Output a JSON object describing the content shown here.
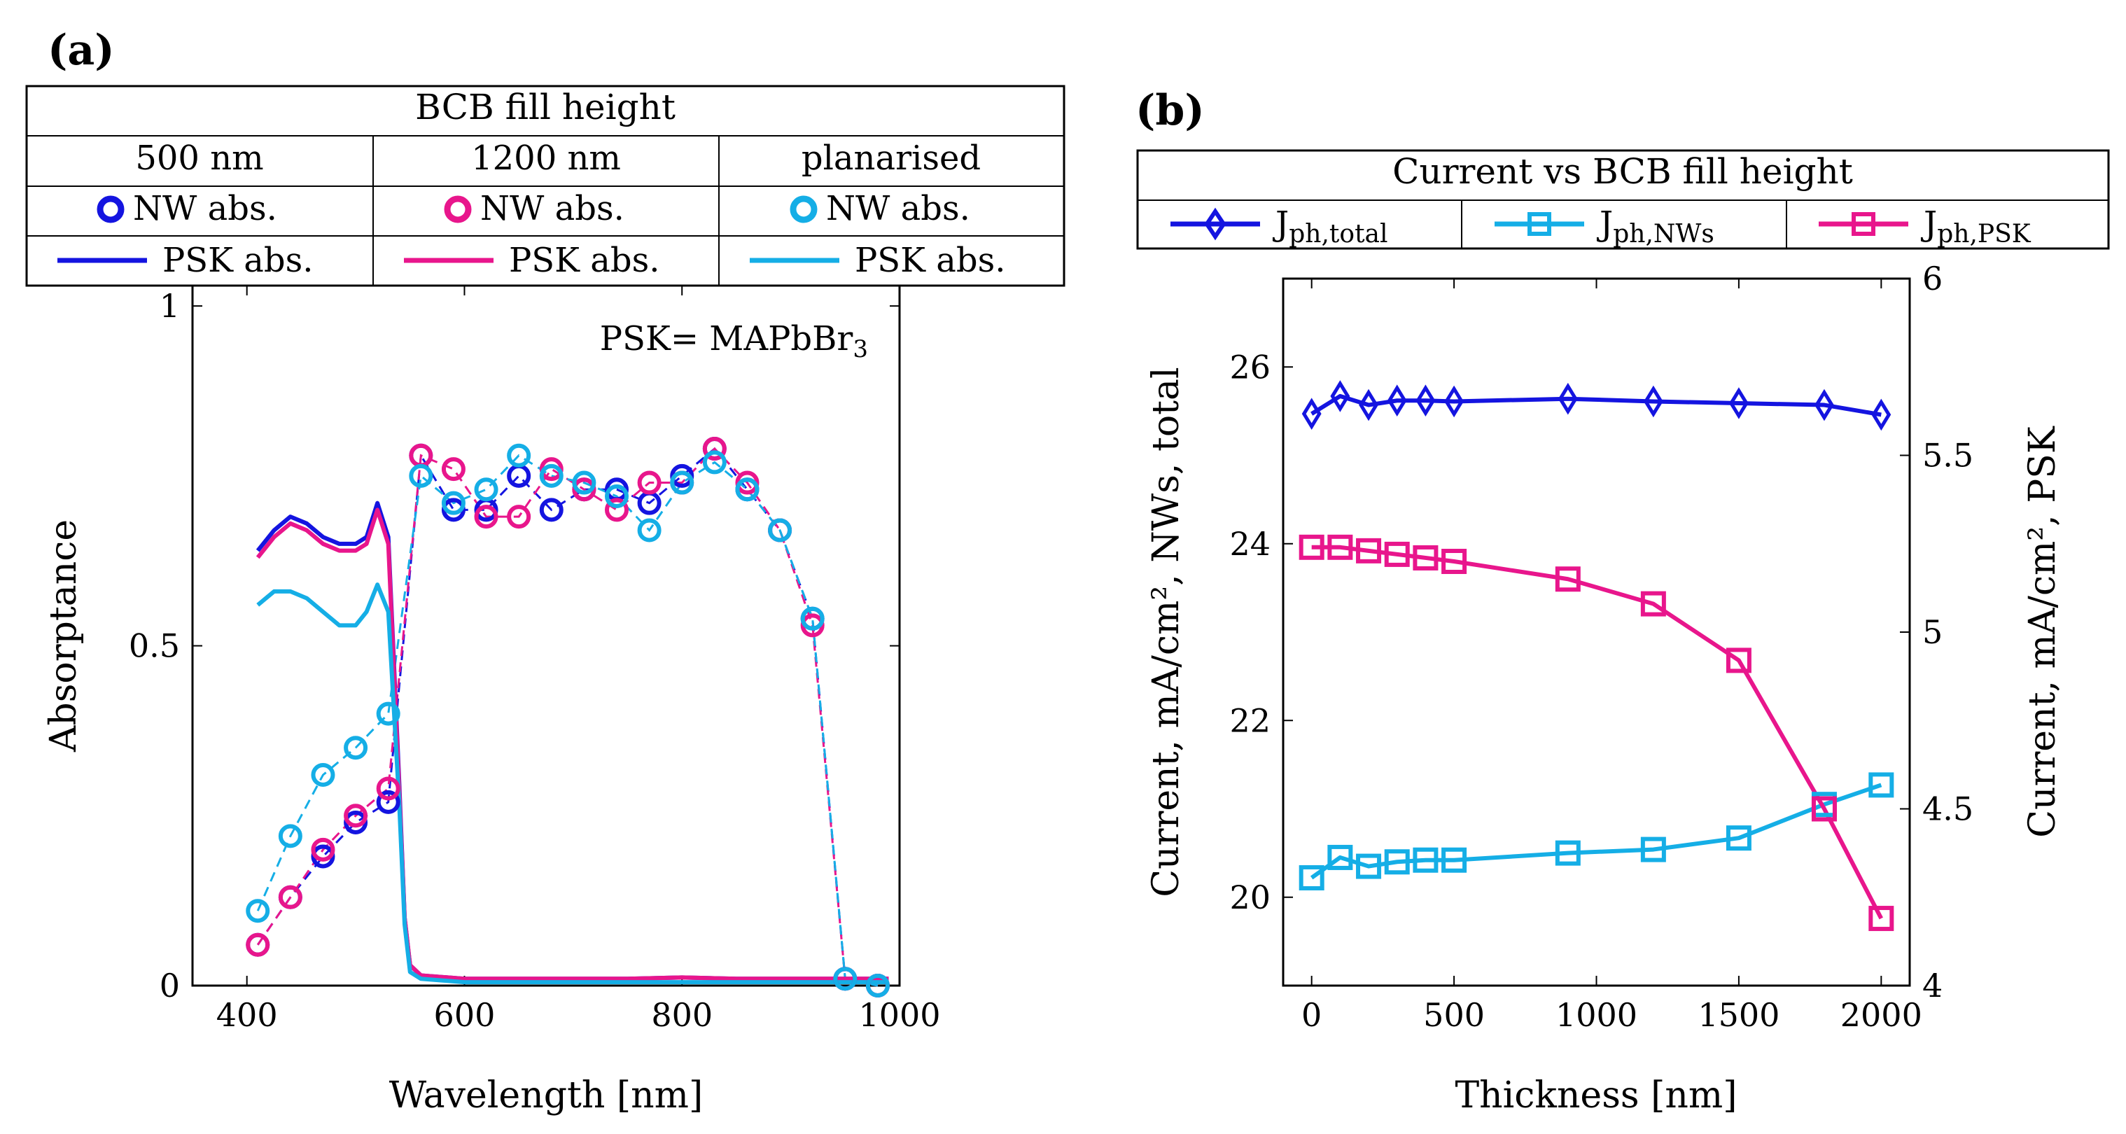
{
  "panels": {
    "a": {
      "label": "(a)"
    },
    "b": {
      "label": "(b)"
    }
  },
  "colors": {
    "blue": "#1414e0",
    "magenta": "#e8168c",
    "cyan": "#15aee6"
  },
  "chart_data": [
    {
      "type": "line",
      "panel": "a",
      "title": "",
      "annotation": "PSK= MAPbBr",
      "annotation_sub": "3",
      "xlabel": "Wavelength [nm]",
      "ylabel": "Absorptance",
      "xlim": [
        350,
        1000
      ],
      "ylim": [
        0,
        1.03
      ],
      "xticks": [
        400,
        600,
        800,
        1000
      ],
      "xtick_labels": [
        "400",
        "600",
        "800",
        "1000"
      ],
      "yticks": [
        0,
        0.5,
        1
      ],
      "ytick_labels": [
        "0",
        "0.5",
        "1"
      ],
      "legend": {
        "title": "BCB fill height",
        "columns": [
          "500 nm",
          "1200 nm",
          "planarised"
        ],
        "marker_label": "NW abs.",
        "line_label": "PSK abs."
      },
      "series": [
        {
          "name": "NW abs. 500 nm",
          "group": "500 nm",
          "kind": "markers",
          "color": "#1414e0",
          "x": [
            410,
            440,
            470,
            500,
            530,
            560,
            590,
            620,
            650,
            680,
            710,
            740,
            770,
            800,
            830,
            860,
            890,
            920,
            950,
            980
          ],
          "y": [
            0.06,
            0.13,
            0.19,
            0.24,
            0.27,
            0.78,
            0.7,
            0.7,
            0.75,
            0.7,
            0.73,
            0.73,
            0.71,
            0.75,
            0.79,
            0.73,
            0.67,
            0.54,
            0.01,
            0.0
          ]
        },
        {
          "name": "NW abs. 1200 nm",
          "group": "1200 nm",
          "kind": "markers",
          "color": "#e8168c",
          "x": [
            410,
            440,
            470,
            500,
            530,
            560,
            590,
            620,
            650,
            680,
            710,
            740,
            770,
            800,
            830,
            860,
            890,
            920,
            950,
            980
          ],
          "y": [
            0.06,
            0.13,
            0.2,
            0.25,
            0.29,
            0.78,
            0.76,
            0.69,
            0.69,
            0.76,
            0.73,
            0.7,
            0.74,
            0.74,
            0.79,
            0.74,
            0.67,
            0.53,
            0.01,
            0.0
          ]
        },
        {
          "name": "NW abs. planarised",
          "group": "planarised",
          "kind": "markers",
          "color": "#15aee6",
          "x": [
            410,
            440,
            470,
            500,
            530,
            560,
            590,
            620,
            650,
            680,
            710,
            740,
            770,
            800,
            830,
            860,
            890,
            920,
            950,
            980
          ],
          "y": [
            0.11,
            0.22,
            0.31,
            0.35,
            0.4,
            0.75,
            0.71,
            0.73,
            0.78,
            0.75,
            0.74,
            0.72,
            0.67,
            0.74,
            0.77,
            0.73,
            0.67,
            0.54,
            0.01,
            0.0
          ]
        },
        {
          "name": "PSK abs. 500 nm",
          "group": "500 nm",
          "kind": "line",
          "color": "#1414e0",
          "x": [
            410,
            425,
            440,
            455,
            470,
            485,
            500,
            510,
            520,
            530,
            540,
            545,
            550,
            560,
            600,
            650,
            700,
            750,
            800,
            850,
            900,
            950,
            990
          ],
          "y": [
            0.64,
            0.67,
            0.69,
            0.68,
            0.66,
            0.65,
            0.65,
            0.66,
            0.71,
            0.66,
            0.3,
            0.1,
            0.03,
            0.015,
            0.01,
            0.01,
            0.01,
            0.01,
            0.012,
            0.01,
            0.01,
            0.01,
            0.01
          ]
        },
        {
          "name": "PSK abs. 1200 nm",
          "group": "1200 nm",
          "kind": "line",
          "color": "#e8168c",
          "x": [
            410,
            425,
            440,
            455,
            470,
            485,
            500,
            510,
            520,
            530,
            540,
            545,
            550,
            560,
            600,
            650,
            700,
            750,
            800,
            850,
            900,
            950,
            990
          ],
          "y": [
            0.63,
            0.66,
            0.68,
            0.67,
            0.65,
            0.64,
            0.64,
            0.65,
            0.7,
            0.65,
            0.29,
            0.1,
            0.03,
            0.015,
            0.01,
            0.01,
            0.01,
            0.01,
            0.012,
            0.01,
            0.01,
            0.01,
            0.01
          ]
        },
        {
          "name": "PSK abs. planarised",
          "group": "planarised",
          "kind": "line",
          "color": "#15aee6",
          "x": [
            410,
            425,
            440,
            455,
            470,
            485,
            500,
            510,
            520,
            530,
            540,
            545,
            550,
            560,
            600,
            650,
            700,
            750,
            800,
            850,
            900,
            950,
            990
          ],
          "y": [
            0.56,
            0.58,
            0.58,
            0.57,
            0.55,
            0.53,
            0.53,
            0.55,
            0.59,
            0.55,
            0.27,
            0.09,
            0.02,
            0.01,
            0.005,
            0.005,
            0.005,
            0.005,
            0.005,
            0.005,
            0.005,
            0.005,
            0.005
          ]
        }
      ]
    },
    {
      "type": "line",
      "panel": "b",
      "title": "",
      "xlabel": "Thickness [nm]",
      "ylabel_left": "Current, mA/cm², NWs, total",
      "ylabel_right": "Current, mA/cm², PSK",
      "xlim": [
        -100,
        2100
      ],
      "ylim_left": [
        19.0,
        27.0
      ],
      "ylim_right": [
        4.0,
        6.0
      ],
      "xticks": [
        0,
        500,
        1000,
        1500,
        2000
      ],
      "xtick_labels": [
        "0",
        "500",
        "1000",
        "1500",
        "2000"
      ],
      "yticks_left": [
        20,
        22,
        24,
        26
      ],
      "ytick_labels_left": [
        "20",
        "22",
        "24",
        "26"
      ],
      "yticks_right": [
        4,
        4.5,
        5,
        5.5,
        6
      ],
      "ytick_labels_right": [
        "4",
        "4.5",
        "5",
        "5.5",
        "6"
      ],
      "legend": {
        "title": "Current vs BCB fill height",
        "entries": [
          {
            "base": "J",
            "sub": "ph,total"
          },
          {
            "base": "J",
            "sub": "ph,NWs"
          },
          {
            "base": "J",
            "sub": "ph,PSK"
          }
        ]
      },
      "series": [
        {
          "name": "Jph,total",
          "axis": "left",
          "marker": "diamond",
          "color": "#1414e0",
          "x": [
            0,
            100,
            200,
            300,
            400,
            500,
            900,
            1200,
            1500,
            1800,
            2000
          ],
          "y": [
            25.47,
            25.67,
            25.57,
            25.62,
            25.62,
            25.61,
            25.64,
            25.61,
            25.59,
            25.57,
            25.46
          ]
        },
        {
          "name": "Jph,NWs",
          "axis": "left",
          "marker": "square",
          "color": "#15aee6",
          "x": [
            0,
            100,
            200,
            300,
            400,
            500,
            900,
            1200,
            1500,
            1800,
            2000
          ],
          "y": [
            20.22,
            20.45,
            20.35,
            20.4,
            20.42,
            20.42,
            20.5,
            20.54,
            20.67,
            21.05,
            21.27
          ]
        },
        {
          "name": "Jph,PSK",
          "axis": "right",
          "marker": "square",
          "color": "#e8168c",
          "x": [
            0,
            100,
            200,
            300,
            400,
            500,
            900,
            1200,
            1500,
            1800,
            2000
          ],
          "y": [
            5.24,
            5.24,
            5.23,
            5.22,
            5.21,
            5.2,
            5.15,
            5.08,
            4.92,
            4.5,
            4.19
          ]
        }
      ]
    }
  ]
}
